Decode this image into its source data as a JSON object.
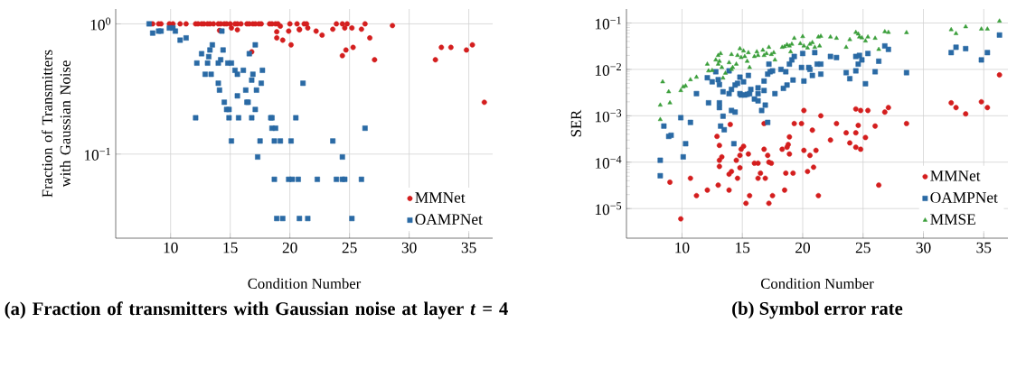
{
  "chart_data": [
    {
      "type": "scatter",
      "title": "(a) Fraction of transmitters with Gaussian noise at layer *t* = 4",
      "xlabel": "Condition Number",
      "ylabel": "Fraction of Transmitters with Gaussian Noise",
      "log": "y",
      "grid": true,
      "legend": "bottom right",
      "xlim": [
        5.4,
        37.0
      ],
      "ylim": [
        0.0226,
        1.3
      ],
      "xticks": [
        10,
        15,
        20,
        25,
        30,
        35
      ],
      "yticks": [
        {
          "value": 1,
          "label": "10$^{0}$"
        },
        {
          "value": 0.1,
          "label": "10$^{−1}$"
        }
      ],
      "series": [
        {
          "name": "MMNet",
          "color": "#d41e1e",
          "marker": "circle",
          "x": [
            8.5,
            9.0,
            9.2,
            9.9,
            10.2,
            10.8,
            11.3,
            12.1,
            12.3,
            12.6,
            12.8,
            13.1,
            13.3,
            13.6,
            14.0,
            14.2,
            14.5,
            14.7,
            15.0,
            15.4,
            15.6,
            15.9,
            16.4,
            16.6,
            16.9,
            17.1,
            17.4,
            17.6,
            18.3,
            18.5,
            18.8,
            19.0,
            20.0,
            20.6,
            21.2,
            21.4,
            23.9,
            24.4,
            24.8,
            26.3,
            14.1,
            15.1,
            15.6,
            16.8,
            18.9,
            18.9,
            19.4,
            19.9,
            20.1,
            20.8,
            19.2,
            20.8,
            21.5,
            22.2,
            22.7,
            23.6,
            24.6,
            25.2,
            26.0,
            26.7,
            28.6,
            24.4,
            24.7,
            25.3,
            27.1,
            32.2,
            32.7,
            33.5,
            34.8,
            35.3,
            36.3
          ],
          "values": [
            1,
            1,
            1,
            1,
            1,
            1,
            1,
            1,
            1,
            1,
            1,
            1,
            1,
            1,
            1,
            1,
            1,
            1,
            1,
            1,
            1,
            1,
            1,
            1,
            1,
            1,
            1,
            1,
            1,
            1,
            1,
            1,
            1,
            1,
            1,
            1,
            1,
            1,
            1,
            1,
            0.89,
            0.93,
            0.9,
            0.61,
            0.87,
            0.78,
            0.75,
            0.88,
            0.69,
            0.9,
            0.96,
            0.91,
            0.93,
            0.88,
            0.82,
            0.91,
            0.93,
            0.93,
            0.91,
            0.78,
            0.97,
            0.57,
            0.63,
            0.66,
            0.53,
            0.53,
            0.66,
            0.66,
            0.63,
            0.69,
            0.25
          ]
        },
        {
          "name": "OAMPNet",
          "color": "#2a6aa5",
          "marker": "square",
          "x": [
            8.2,
            8.5,
            9.0,
            9.2,
            9.9,
            10.2,
            10.4,
            10.8,
            11.3,
            12.1,
            12.2,
            12.6,
            12.9,
            13.1,
            13.2,
            13.3,
            13.4,
            13.5,
            14.0,
            14.0,
            14.1,
            14.2,
            14.3,
            14.4,
            14.5,
            14.7,
            14.9,
            14.9,
            14.8,
            15.1,
            15.1,
            15.4,
            15.6,
            15.6,
            15.7,
            16.1,
            16.3,
            16.4,
            16.5,
            16.6,
            16.8,
            16.8,
            16.9,
            17.1,
            17.1,
            17.2,
            17.3,
            17.5,
            17.6,
            17.7,
            18.4,
            18.5,
            18.5,
            18.8,
            18.7,
            19.2,
            18.7,
            18.9,
            19.4,
            19.9,
            20.2,
            20.1,
            20.5,
            20.7,
            20.8,
            21.1,
            21.5,
            22.3,
            23.6,
            23.9,
            24.4,
            24.4,
            24.6,
            25.2,
            26.0,
            26.3
          ],
          "values": [
            1.0,
            0.85,
            0.88,
            0.88,
            0.93,
            0.93,
            0.88,
            0.75,
            0.78,
            0.19,
            0.5,
            0.59,
            0.41,
            0.5,
            0.56,
            0.63,
            0.41,
            0.69,
            0.5,
            0.35,
            0.31,
            0.53,
            0.88,
            0.63,
            0.25,
            0.22,
            0.22,
            0.19,
            0.5,
            0.5,
            0.126,
            0.44,
            0.28,
            0.41,
            0.19,
            0.44,
            0.31,
            0.25,
            0.25,
            0.59,
            0.37,
            0.19,
            0.41,
            0.69,
            0.22,
            0.31,
            0.095,
            0.126,
            0.35,
            0.44,
            0.19,
            0.19,
            0.158,
            0.158,
            0.126,
            0.126,
            0.064,
            0.032,
            0.032,
            0.064,
            0.064,
            0.126,
            0.19,
            0.064,
            0.032,
            0.35,
            0.032,
            0.064,
            0.126,
            0.064,
            0.095,
            0.064,
            0.064,
            0.032,
            0.064,
            0.158
          ]
        }
      ]
    },
    {
      "type": "scatter",
      "title": "(b) Symbol error rate",
      "xlabel": "Condition Number",
      "ylabel": "SER",
      "log": "y",
      "grid": true,
      "legend": "bottom right",
      "xlim": [
        5.4,
        37.0
      ],
      "ylim": [
        2.3e-06,
        0.2
      ],
      "xticks": [
        10,
        15,
        20,
        25,
        30,
        35
      ],
      "yticks": [
        {
          "value": 1e-05,
          "label": "10$^{−5}$"
        },
        {
          "value": 0.0001,
          "label": "10$^{−4}$"
        },
        {
          "value": 0.001,
          "label": "10$^{−3}$"
        },
        {
          "value": 0.01,
          "label": "10$^{−2}$"
        },
        {
          "value": 0.1,
          "label": "10$^{−1}$"
        }
      ],
      "series": [
        {
          "name": "MMNet",
          "color": "#d41e1e",
          "marker": "circle",
          "x": [
            9.0,
            9.9,
            10.7,
            11.2,
            12.1,
            12.9,
            13.1,
            13.1,
            13.3,
            13.1,
            13.0,
            13.9,
            14.1,
            13.9,
            14.0,
            14.5,
            14.6,
            14.8,
            14.8,
            14.9,
            15.1,
            15.3,
            15.6,
            15.5,
            16.0,
            16.3,
            16.3,
            16.5,
            16.8,
            16.8,
            16.9,
            17.1,
            17.2,
            17.2,
            17.4,
            17.5,
            18.3,
            18.5,
            18.7,
            18.6,
            18.8,
            18.9,
            18.9,
            19.2,
            19.3,
            19.9,
            20.1,
            20.1,
            20.6,
            20.8,
            20.4,
            20.9,
            21.1,
            21.3,
            21.5,
            22.3,
            22.8,
            23.6,
            23.9,
            24.4,
            24.8,
            24.6,
            24.4,
            24.4,
            24.8,
            25.2,
            25.4,
            26.0,
            26.3,
            26.8,
            27.1,
            28.6,
            32.3,
            32.7,
            33.5,
            34.8,
            35.3,
            36.3
          ],
          "values": [
            3.7e-05,
            6e-06,
            4.5e-05,
            1.9e-05,
            2.5e-05,
            0.00036,
            0.00023,
            0.00011,
            0.00013,
            8.1e-05,
            3.2e-05,
            5.5e-05,
            6.3e-05,
            2.5e-05,
            0.00065,
            0.00011,
            4.5e-05,
            7.6e-05,
            0.00014,
            0.00019,
            0.00022,
            1.3e-05,
            1.9e-05,
            0.00015,
            9.5e-05,
            9.5e-05,
            4.5e-05,
            5.8e-05,
            0.00068,
            0.00019,
            4.5e-05,
            0.00014,
            1.3e-05,
            0.0001,
            9.5e-05,
            1.9e-05,
            0.00019,
            2.5e-05,
            0.00021,
            5.8e-05,
            0.00024,
            0.00035,
            0.00015,
            5.8e-05,
            0.00068,
            0.00068,
            0.0013,
            0.00018,
            0.00014,
            0.00049,
            6.3e-05,
            7.8e-05,
            0.00018,
            1.9e-05,
            0.001,
            0.0003,
            0.00068,
            0.00043,
            0.00026,
            0.0014,
            0.0013,
            0.00062,
            0.00043,
            0.00021,
            0.00019,
            0.00034,
            0.0013,
            0.0006,
            3.2e-05,
            0.0012,
            0.0015,
            0.00068,
            0.0019,
            0.0015,
            0.0011,
            0.002,
            0.0015,
            0.0076
          ]
        },
        {
          "name": "OAMPNet",
          "color": "#2a6aa5",
          "marker": "square",
          "x": [
            8.2,
            8.2,
            8.5,
            8.9,
            9.1,
            9.9,
            10.1,
            10.3,
            10.7,
            11.2,
            12.1,
            12.2,
            12.5,
            12.8,
            13.0,
            13.1,
            13.1,
            13.1,
            13.4,
            13.4,
            13.2,
            13.5,
            13.9,
            13.9,
            14.1,
            14.1,
            14.3,
            14.4,
            14.4,
            14.6,
            14.8,
            14.8,
            14.9,
            15.1,
            15.2,
            15.4,
            15.5,
            15.6,
            15.7,
            16.0,
            16.3,
            16.3,
            16.3,
            16.6,
            16.8,
            16.8,
            16.9,
            17.1,
            17.1,
            17.2,
            17.3,
            17.5,
            17.7,
            18.2,
            18.4,
            18.6,
            18.7,
            18.9,
            19.1,
            19.2,
            19.3,
            19.9,
            20.0,
            20.1,
            20.5,
            20.6,
            20.8,
            21.0,
            21.2,
            21.5,
            21.5,
            22.3,
            22.8,
            23.6,
            23.9,
            24.4,
            24.6,
            24.7,
            24.9,
            24.4,
            25.2,
            25.4,
            26.0,
            26.3,
            26.8,
            27.1,
            28.6,
            32.3,
            32.7,
            33.5,
            34.8,
            35.3,
            36.3
          ],
          "values": [
            0.00011,
            5.1e-05,
            0.0006,
            0.00036,
            0.00038,
            0.00091,
            0.00013,
            0.00025,
            0.00072,
            0.003,
            0.0066,
            0.0019,
            0.0054,
            0.0089,
            0.006,
            0.0047,
            0.0019,
            0.0015,
            0.0033,
            0.00098,
            0.0006,
            0.0005,
            0.0093,
            0.003,
            0.0037,
            0.0013,
            0.00025,
            0.0012,
            0.0046,
            0.005,
            0.0068,
            0.003,
            0.0028,
            0.0054,
            0.0028,
            0.0029,
            0.0074,
            0.003,
            0.0037,
            0.0023,
            0.004,
            0.003,
            0.0021,
            0.0013,
            0.0056,
            0.0035,
            0.0017,
            0.00072,
            0.0079,
            0.013,
            0.0089,
            0.0093,
            0.003,
            0.01,
            0.0039,
            0.0089,
            0.0046,
            0.013,
            0.016,
            0.0059,
            0.019,
            0.011,
            0.022,
            0.0056,
            0.011,
            0.01,
            0.0074,
            0.023,
            0.013,
            0.013,
            0.0079,
            0.019,
            0.018,
            0.0085,
            0.0063,
            0.019,
            0.013,
            0.02,
            0.016,
            0.0093,
            0.0049,
            0.022,
            0.0089,
            0.015,
            0.032,
            0.027,
            0.0085,
            0.023,
            0.03,
            0.028,
            0.016,
            0.023,
            0.055
          ]
        },
        {
          "name": "MMSE",
          "color": "#3a9e3a",
          "marker": "triangle",
          "x": [
            8.2,
            8.2,
            8.4,
            8.9,
            9.0,
            9.9,
            10.1,
            10.3,
            10.7,
            11.2,
            12.1,
            12.2,
            12.5,
            12.8,
            13.0,
            13.2,
            13.1,
            13.0,
            13.3,
            13.4,
            13.6,
            13.9,
            14.1,
            14.1,
            14.2,
            14.5,
            14.6,
            14.8,
            15.1,
            14.9,
            15.2,
            15.4,
            15.5,
            15.6,
            16.0,
            16.2,
            16.3,
            16.7,
            16.8,
            17.0,
            17.2,
            17.4,
            17.6,
            17.7,
            18.3,
            18.5,
            18.7,
            18.9,
            19.0,
            19.1,
            19.3,
            19.8,
            20.0,
            20.1,
            20.4,
            20.6,
            20.8,
            21.0,
            21.3,
            21.5,
            21.4,
            22.3,
            22.8,
            23.6,
            23.9,
            24.4,
            24.6,
            24.7,
            24.9,
            25.2,
            25.4,
            26.0,
            26.3,
            26.8,
            27.1,
            28.6,
            32.3,
            32.7,
            33.5,
            34.8,
            35.3,
            36.3
          ],
          "values": [
            0.00083,
            0.0017,
            0.0054,
            0.0033,
            0.0019,
            0.0035,
            0.0042,
            0.0044,
            0.006,
            0.0068,
            0.013,
            0.0093,
            0.0095,
            0.016,
            0.02,
            0.022,
            0.015,
            0.013,
            0.011,
            0.0065,
            0.0083,
            0.014,
            0.021,
            0.01,
            0.011,
            0.013,
            0.02,
            0.028,
            0.025,
            0.018,
            0.019,
            0.015,
            0.023,
            0.011,
            0.019,
            0.024,
            0.02,
            0.026,
            0.02,
            0.022,
            0.03,
            0.021,
            0.023,
            0.016,
            0.03,
            0.031,
            0.034,
            0.032,
            0.024,
            0.035,
            0.047,
            0.036,
            0.051,
            0.032,
            0.029,
            0.035,
            0.038,
            0.03,
            0.05,
            0.052,
            0.032,
            0.05,
            0.047,
            0.03,
            0.044,
            0.063,
            0.058,
            0.05,
            0.048,
            0.041,
            0.05,
            0.047,
            0.027,
            0.065,
            0.063,
            0.062,
            0.072,
            0.059,
            0.083,
            0.074,
            0.074,
            0.11
          ]
        }
      ]
    }
  ]
}
